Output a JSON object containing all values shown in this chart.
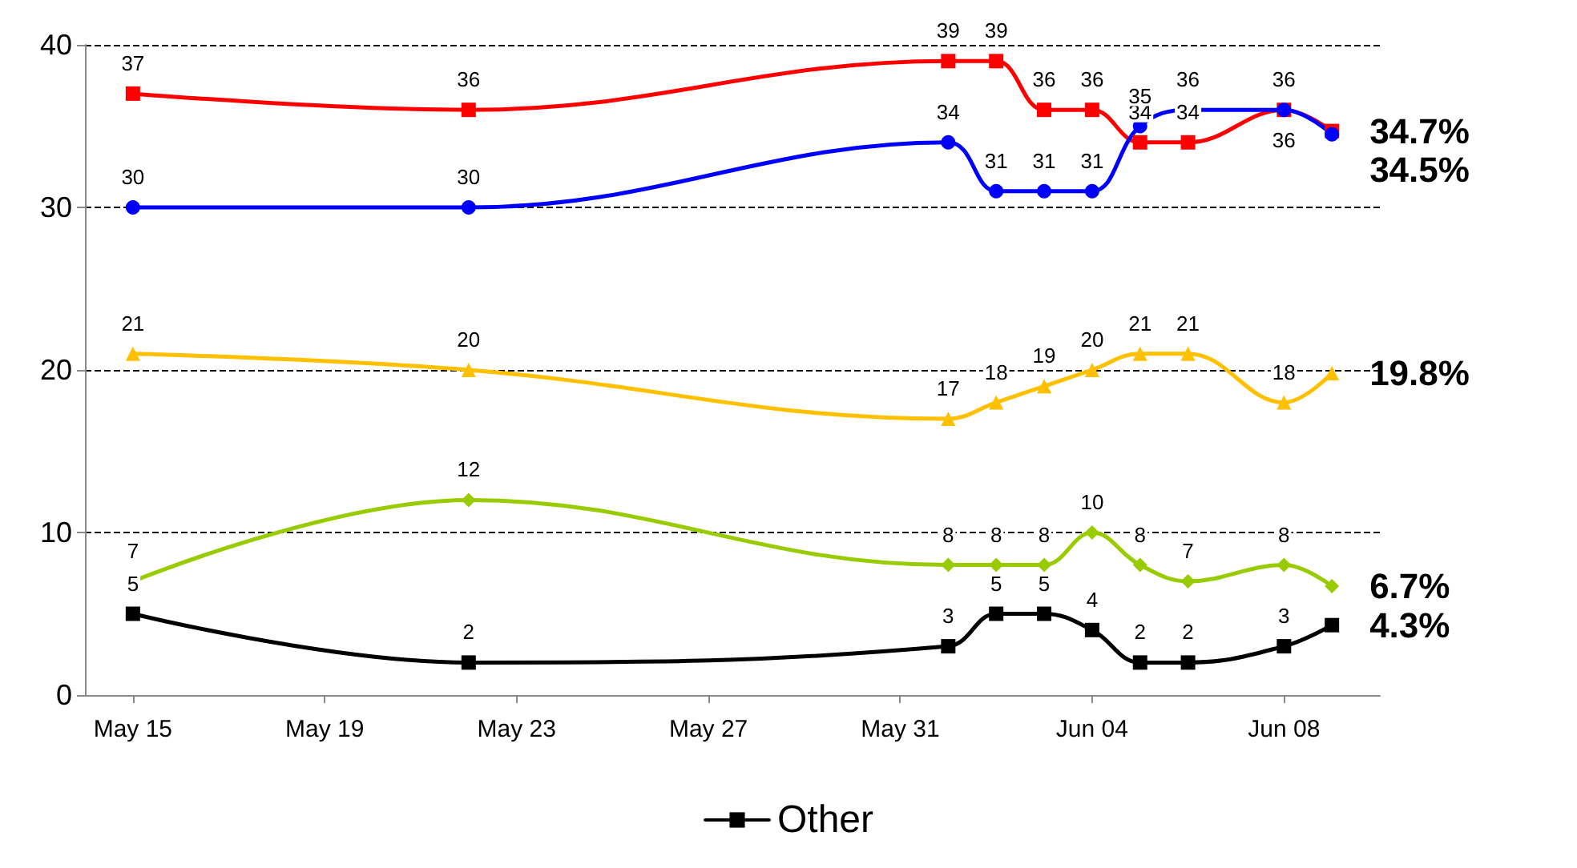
{
  "chart_data": {
    "type": "line",
    "x": [
      "--05-15",
      "--05-22",
      "--06-01",
      "--06-02",
      "--06-03",
      "--06-04",
      "--06-05",
      "--06-06",
      "--06-08",
      "--06-09"
    ],
    "xlim": [
      "--05-14",
      "--06-10"
    ],
    "xticks": [
      {
        "value": "--05-15",
        "label": "May 15"
      },
      {
        "value": "--05-19",
        "label": "May 19"
      },
      {
        "value": "--05-23",
        "label": "May 23"
      },
      {
        "value": "--05-27",
        "label": "May 27"
      },
      {
        "value": "--05-31",
        "label": "May 31"
      },
      {
        "value": "--06-04",
        "label": "Jun 04"
      },
      {
        "value": "--06-08",
        "label": "Jun 08"
      }
    ],
    "ylim": [
      0,
      40
    ],
    "yticks": [
      0,
      10,
      20,
      30,
      40
    ],
    "grid": "y",
    "legend": "bottom",
    "line_style": "solid",
    "series": [
      {
        "color": "#ff0000",
        "marker": "square",
        "values": [
          37,
          36,
          39,
          39,
          36,
          36,
          34,
          34,
          36,
          34.7
        ],
        "value_labels": [
          "37",
          "36",
          "39",
          "39",
          "36",
          "36",
          "34",
          "34",
          "36",
          "34.7%"
        ]
      },
      {
        "color": "#0000ff",
        "marker": "circle",
        "values": [
          30,
          30,
          34,
          31,
          31,
          31,
          35,
          36,
          36,
          34.5
        ],
        "value_labels": [
          "30",
          "30",
          "34",
          "31",
          "31",
          "31",
          "35",
          "36",
          "36",
          "34.5%"
        ]
      },
      {
        "color": "#ffc000",
        "marker": "triangle",
        "values": [
          21,
          20,
          17,
          18,
          19,
          20,
          21,
          21,
          18,
          19.8
        ],
        "value_labels": [
          "21",
          "20",
          "17",
          "18",
          "19",
          "20",
          "21",
          "21",
          "18",
          "19.8%"
        ]
      },
      {
        "color": "#99cc00",
        "marker": "diamond",
        "values": [
          7,
          12,
          8,
          8,
          8,
          10,
          8,
          7,
          8,
          6.7
        ],
        "value_labels": [
          "7",
          "12",
          "8",
          "8",
          "8",
          "10",
          "8",
          "7",
          "8",
          "6.7%"
        ]
      },
      {
        "name": "Other",
        "color": "#000000",
        "marker": "square",
        "values": [
          5,
          2,
          3,
          5,
          5,
          4,
          2,
          2,
          3,
          4.3
        ],
        "value_labels": [
          "5",
          "2",
          "3",
          "5",
          "5",
          "4",
          "2",
          "2",
          "3",
          "4.3%"
        ]
      }
    ]
  }
}
